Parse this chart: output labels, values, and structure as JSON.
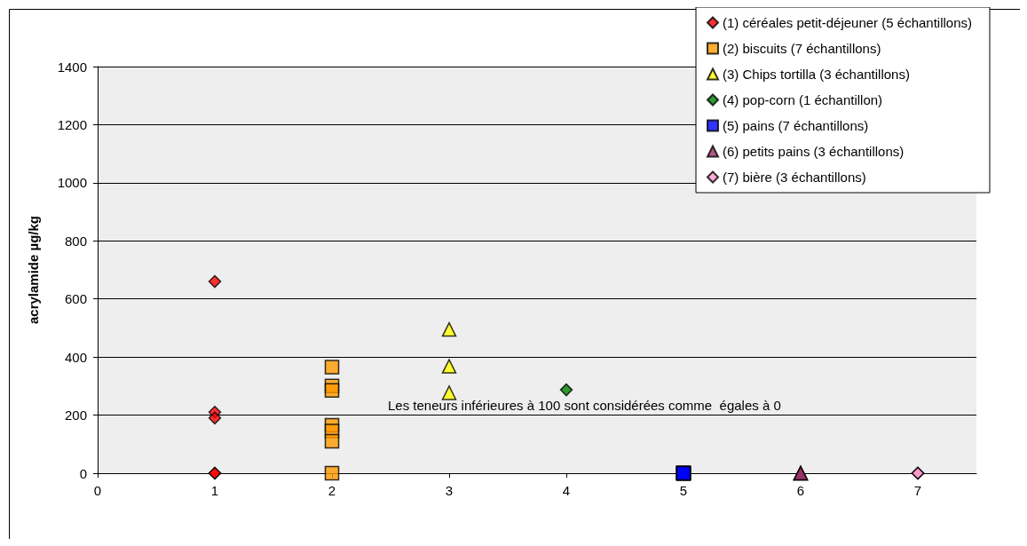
{
  "chart_data": {
    "type": "scatter",
    "ylabel": "acrylamide µg/kg",
    "xlim": [
      0,
      7.5
    ],
    "xticks": [
      0,
      1,
      2,
      3,
      4,
      5,
      6,
      7
    ],
    "ylim": [
      0,
      1400
    ],
    "yticks": [
      0,
      200,
      400,
      600,
      800,
      1000,
      1200,
      1400
    ],
    "grid": "y",
    "legend": "top right",
    "annotations": [
      "Les teneurs inférieures à 100 sont considérées comme  égales à 0"
    ],
    "series": [
      {
        "name": "(1) céréales petit-déjeuner (5 échantillons)",
        "color": "#ff0000",
        "marker": "diamond",
        "x": [
          1,
          1,
          1,
          1,
          1
        ],
        "values": [
          660,
          210,
          190,
          0,
          0
        ]
      },
      {
        "name": "(2) biscuits (7 échantillons)",
        "color": "#ff9900",
        "marker": "square",
        "x": [
          2,
          2,
          2,
          2,
          2,
          2,
          2
        ],
        "values": [
          365,
          300,
          285,
          165,
          145,
          110,
          0
        ]
      },
      {
        "name": "(3) Chips tortilla (3 échantillons)",
        "color": "#ffff00",
        "marker": "triangle",
        "x": [
          3,
          3,
          3
        ],
        "values": [
          495,
          368,
          277
        ]
      },
      {
        "name": "(4) pop-corn (1 échantillon)",
        "color": "#008000",
        "marker": "diamond",
        "x": [
          4
        ],
        "values": [
          287
        ]
      },
      {
        "name": "(5) pains (7 échantillons)",
        "color": "#0000ff",
        "marker": "square",
        "x": [
          5,
          5,
          5,
          5,
          5,
          5,
          5
        ],
        "values": [
          0,
          0,
          0,
          0,
          0,
          0,
          0
        ]
      },
      {
        "name": "(6) petits pains (3 échantillons)",
        "color": "#993366",
        "marker": "triangle",
        "x": [
          6,
          6,
          6
        ],
        "values": [
          0,
          0,
          0
        ]
      },
      {
        "name": "(7) bière (3 échantillons)",
        "color": "#ff99cc",
        "marker": "diamond",
        "x": [
          7,
          7,
          7
        ],
        "values": [
          0,
          0,
          0
        ]
      }
    ]
  }
}
